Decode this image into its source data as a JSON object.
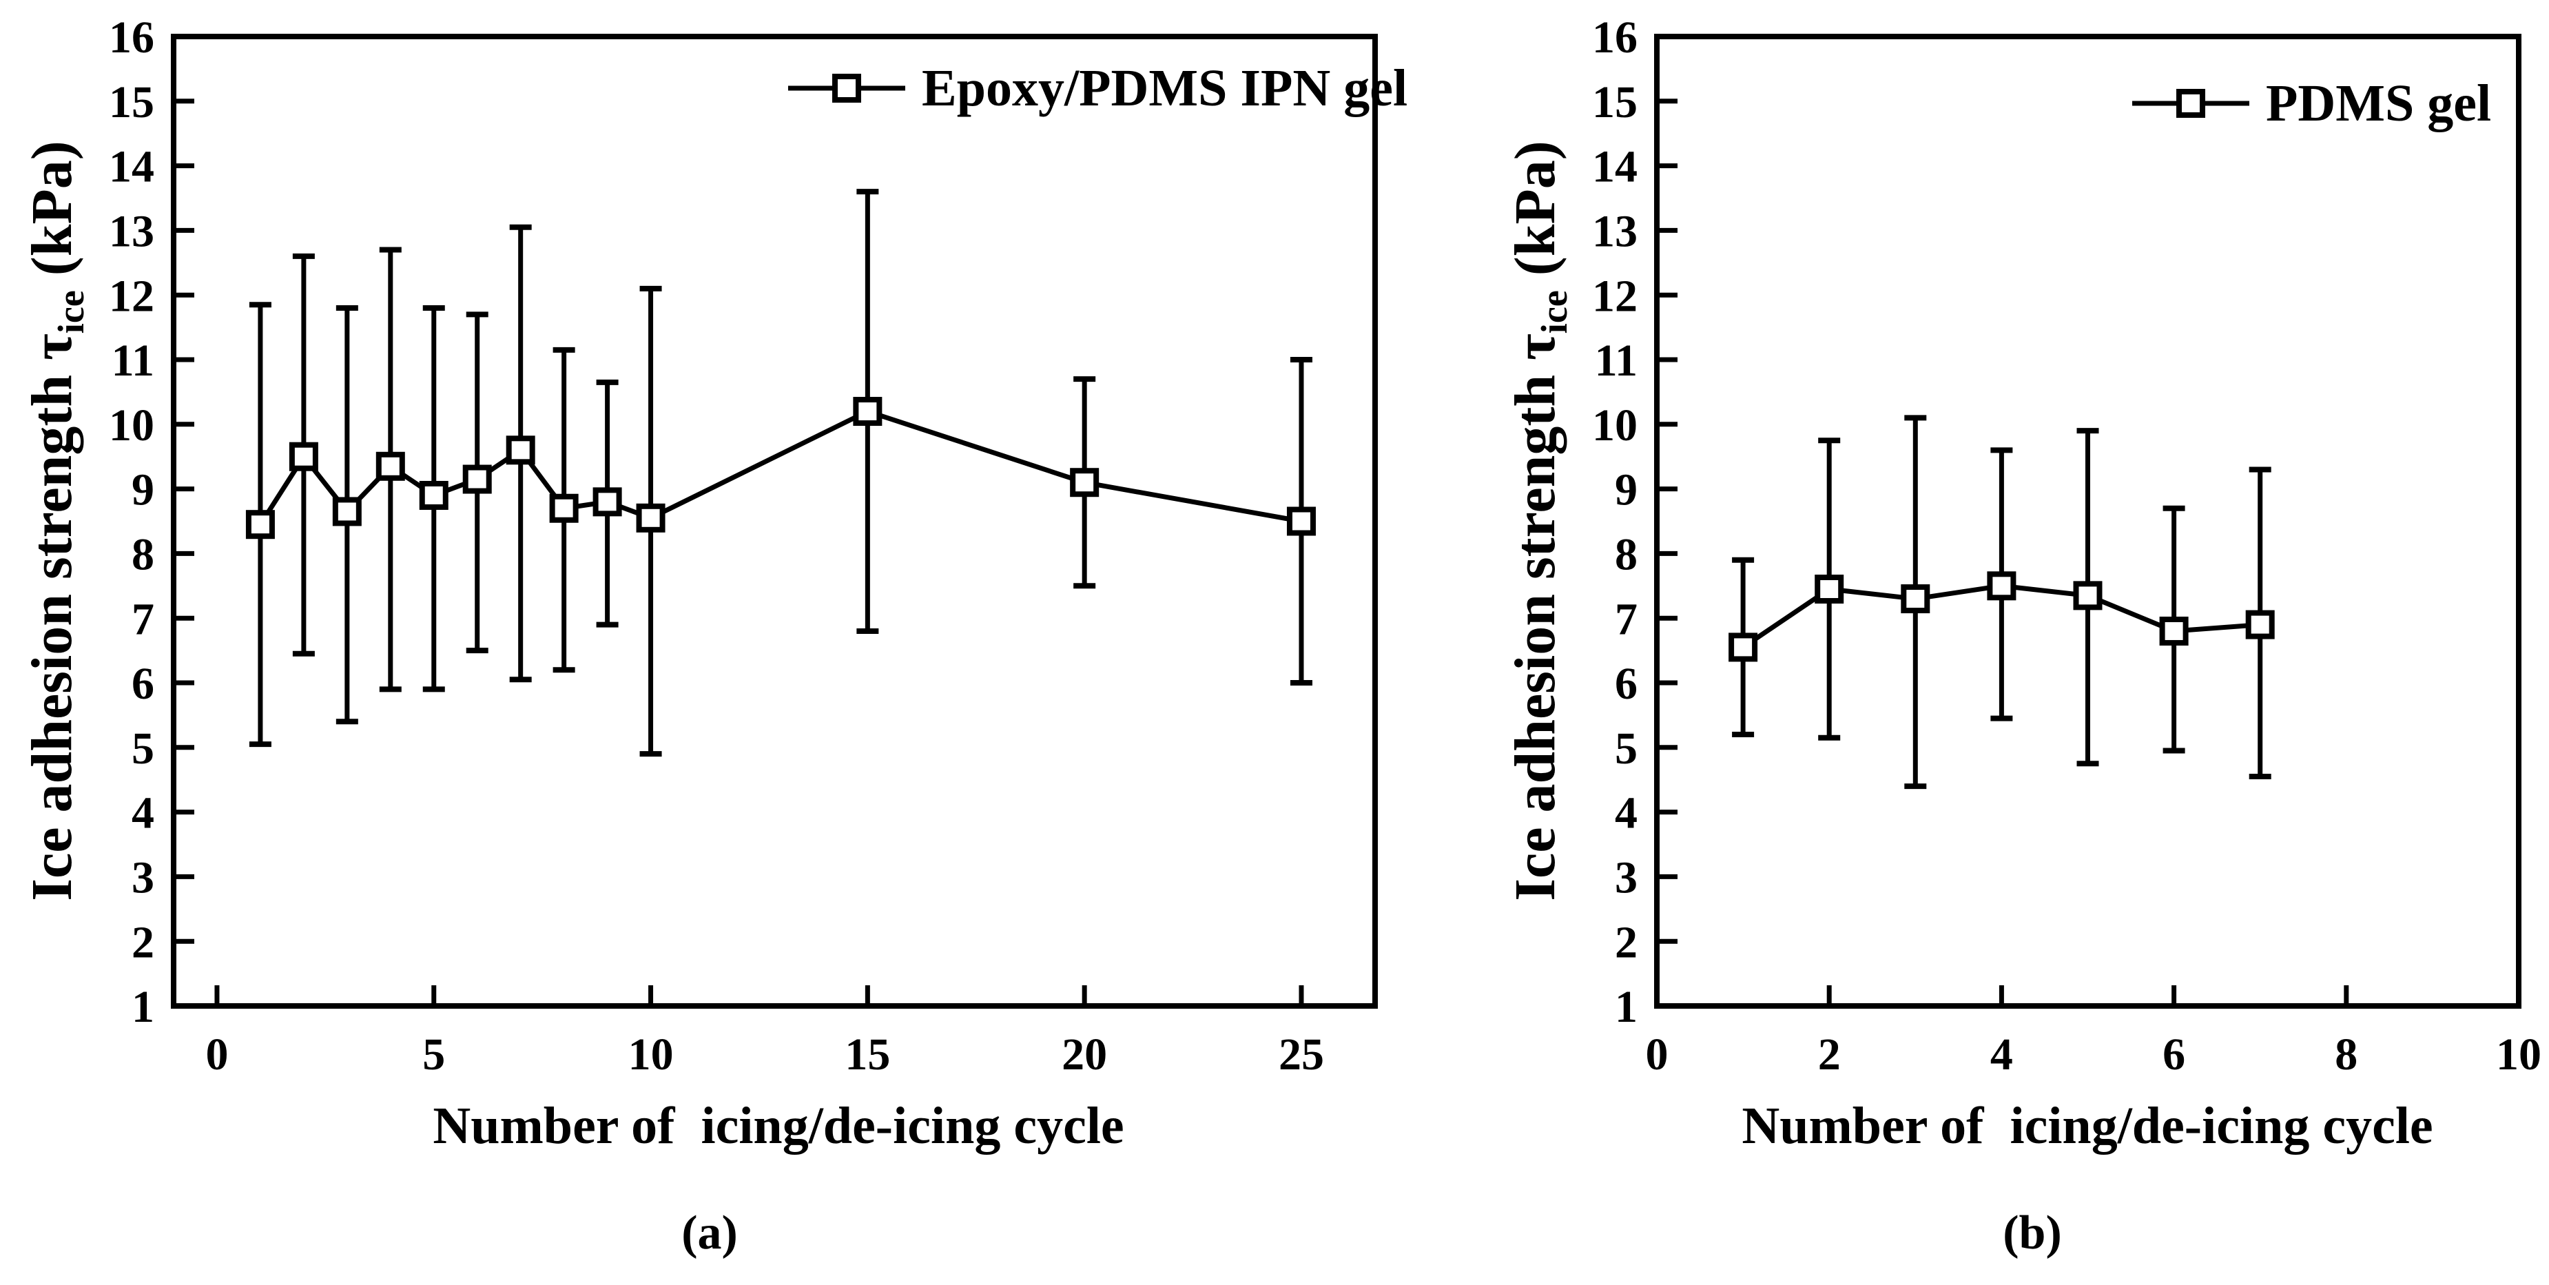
{
  "figure": {
    "background_color": "#ffffff",
    "ink_color": "#000000"
  },
  "chart_data": [
    {
      "id": "a",
      "type": "line",
      "panel_label": "(a)",
      "legend": "Epoxy/PDMS IPN gel",
      "legend_position": "top-right-inside",
      "marker": "open-square",
      "line_color": "#000000",
      "grid": false,
      "xlabel": "Number of  icing/de-icing cycle",
      "ylabel": "Ice adhesion strength τice (kPa)",
      "ylabel_parts": {
        "pre": "Ice adhesion strength τ",
        "sub": "ice",
        "post": " (kPa)"
      },
      "xlim": [
        -1,
        26.7
      ],
      "ylim": [
        1,
        16
      ],
      "xticks": [
        0,
        5,
        10,
        15,
        20,
        25
      ],
      "yticks": [
        1,
        2,
        3,
        4,
        5,
        6,
        7,
        8,
        9,
        10,
        11,
        12,
        13,
        14,
        15,
        16
      ],
      "x": [
        1,
        2,
        3,
        4,
        5,
        6,
        7,
        8,
        9,
        10,
        15,
        20,
        25
      ],
      "y": [
        8.45,
        9.5,
        8.65,
        9.35,
        8.9,
        9.15,
        9.6,
        8.7,
        8.8,
        8.55,
        10.2,
        9.1,
        8.5
      ],
      "y_err_upper_cap": [
        11.85,
        12.6,
        11.8,
        12.7,
        11.8,
        11.7,
        13.05,
        11.15,
        10.65,
        12.1,
        13.6,
        10.7,
        11.0
      ],
      "y_err_lower_cap": [
        5.05,
        6.45,
        5.4,
        5.9,
        5.9,
        6.5,
        6.05,
        6.2,
        6.9,
        4.9,
        6.8,
        7.5,
        6.0
      ]
    },
    {
      "id": "b",
      "type": "line",
      "panel_label": "(b)",
      "legend": "PDMS gel",
      "legend_position": "top-right-inside",
      "marker": "open-square",
      "line_color": "#000000",
      "grid": false,
      "xlabel": "Number of  icing/de-icing cycle",
      "ylabel": "Ice adhesion strength τice (kPa)",
      "ylabel_parts": {
        "pre": "Ice adhesion strength τ",
        "sub": "ice",
        "post": " (kPa)"
      },
      "xlim": [
        0,
        10
      ],
      "ylim": [
        1,
        16
      ],
      "xticks": [
        0,
        2,
        4,
        6,
        8,
        10
      ],
      "yticks": [
        1,
        2,
        3,
        4,
        5,
        6,
        7,
        8,
        9,
        10,
        11,
        12,
        13,
        14,
        15,
        16
      ],
      "x": [
        1,
        2,
        3,
        4,
        5,
        6,
        7
      ],
      "y": [
        6.55,
        7.45,
        7.3,
        7.5,
        7.35,
        6.8,
        6.9
      ],
      "y_err_upper_cap": [
        7.9,
        9.75,
        10.1,
        9.6,
        9.9,
        8.7,
        9.3
      ],
      "y_err_lower_cap": [
        5.2,
        5.15,
        4.4,
        5.45,
        4.75,
        4.95,
        4.55
      ]
    }
  ]
}
